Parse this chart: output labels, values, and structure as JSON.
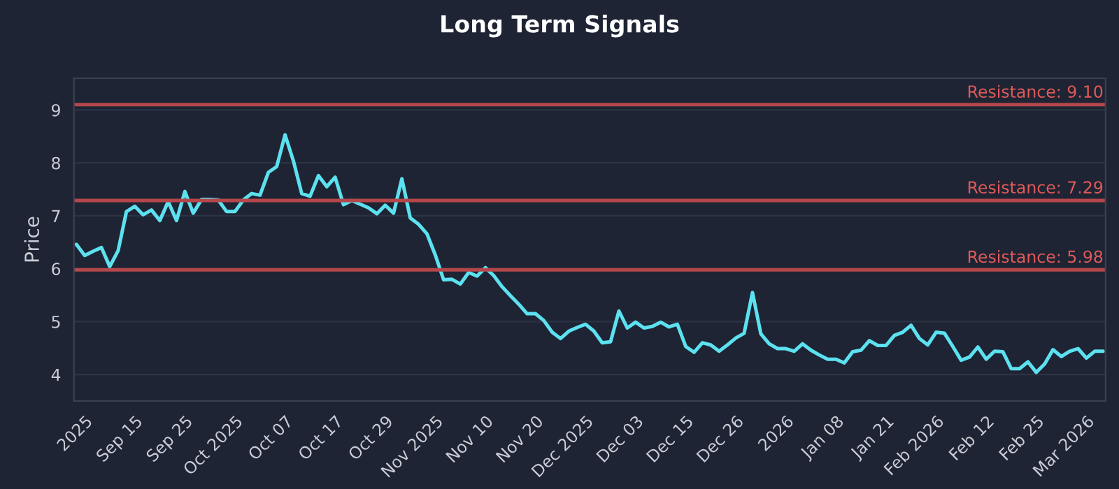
{
  "chart_data": {
    "type": "line",
    "title": "Long Term Signals",
    "ylabel": "Price",
    "categories": [
      null,
      "2025",
      null,
      null,
      null,
      null,
      null,
      "Sep 15",
      null,
      null,
      null,
      null,
      null,
      "Sep 25",
      null,
      null,
      null,
      null,
      null,
      "Oct 2025",
      null,
      null,
      null,
      null,
      null,
      "Oct 07",
      null,
      null,
      null,
      null,
      null,
      "Oct 17",
      null,
      null,
      null,
      null,
      null,
      "Oct 29",
      null,
      null,
      null,
      null,
      null,
      "Nov 2025",
      null,
      null,
      null,
      null,
      null,
      "Nov 10",
      null,
      null,
      null,
      null,
      null,
      "Nov 20",
      null,
      null,
      null,
      null,
      null,
      "Dec 2025",
      null,
      null,
      null,
      null,
      null,
      "Dec 03",
      null,
      null,
      null,
      null,
      null,
      "Dec 15",
      null,
      null,
      null,
      null,
      null,
      "Dec 26",
      null,
      null,
      null,
      null,
      null,
      "2026",
      null,
      null,
      null,
      null,
      null,
      "Jan 08",
      null,
      null,
      null,
      null,
      null,
      "Jan 21",
      null,
      null,
      null,
      null,
      null,
      "Feb 2026",
      null,
      null,
      null,
      null,
      null,
      "Feb 12",
      null,
      null,
      null,
      null,
      null,
      "Feb 25",
      null,
      null,
      null,
      null,
      null,
      "Mar 2026",
      null,
      null
    ],
    "series": [
      {
        "color": "#5ce1f0",
        "values": [
          6.46,
          6.25,
          6.33,
          6.4,
          6.04,
          6.34,
          7.08,
          7.18,
          7.02,
          7.11,
          6.91,
          7.27,
          6.91,
          7.46,
          7.05,
          7.31,
          7.31,
          7.3,
          7.08,
          7.08,
          7.3,
          7.42,
          7.39,
          7.82,
          7.93,
          8.53,
          8.04,
          7.42,
          7.37,
          7.76,
          7.55,
          7.73,
          7.21,
          7.29,
          7.22,
          7.15,
          7.04,
          7.2,
          7.05,
          7.7,
          6.96,
          6.84,
          6.66,
          6.26,
          5.79,
          5.8,
          5.71,
          5.93,
          5.86,
          6.02,
          5.87,
          5.66,
          5.49,
          5.33,
          5.15,
          5.15,
          5.02,
          4.8,
          4.68,
          4.82,
          4.89,
          4.95,
          4.82,
          4.6,
          4.62,
          5.2,
          4.88,
          4.99,
          4.88,
          4.91,
          4.99,
          4.9,
          4.95,
          4.53,
          4.42,
          4.6,
          4.56,
          4.44,
          4.56,
          4.69,
          4.78,
          5.55,
          4.77,
          4.58,
          4.49,
          4.49,
          4.44,
          4.58,
          4.46,
          4.37,
          4.29,
          4.29,
          4.22,
          4.43,
          4.46,
          4.64,
          4.55,
          4.55,
          4.74,
          4.8,
          4.93,
          4.68,
          4.56,
          4.8,
          4.78,
          4.53,
          4.27,
          4.33,
          4.52,
          4.29,
          4.44,
          4.43,
          4.11,
          4.11,
          4.24,
          4.04,
          4.2,
          4.47,
          4.34,
          4.44,
          4.49,
          4.31,
          4.44,
          4.44
        ]
      }
    ],
    "ylim": [
      3.5,
      9.6
    ],
    "yticks": [
      4,
      5,
      6,
      7,
      8,
      9
    ],
    "grid": "y",
    "ref_lines": [
      {
        "axis": "y",
        "value": 9.1,
        "label": "Resistance: 9.10",
        "color": "#b5474b"
      },
      {
        "axis": "y",
        "value": 7.29,
        "label": "Resistance: 7.29",
        "color": "#b5474b"
      },
      {
        "axis": "y",
        "value": 5.98,
        "label": "Resistance: 5.98",
        "color": "#b5474b"
      }
    ]
  }
}
